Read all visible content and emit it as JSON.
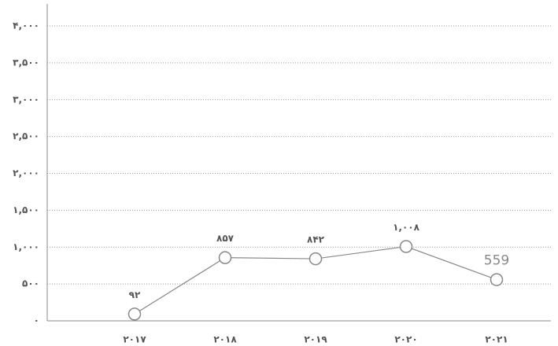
{
  "chart_data": {
    "type": "line",
    "categories": [
      "۲۰۱۷",
      "۲۰۱۸",
      "۲۰۱۹",
      "۲۰۲۰",
      "۲۰۲۱"
    ],
    "values": [
      92,
      857,
      842,
      1008,
      559
    ],
    "value_labels": [
      "۹۲",
      "۸۵۷",
      "۸۴۲",
      "۱,۰۰۸",
      "559"
    ],
    "color": "#888888",
    "ylim": [
      0,
      4000
    ],
    "yticks": [
      {
        "value": 0,
        "label": "۰"
      },
      {
        "value": 500,
        "label": "۵۰۰"
      },
      {
        "value": 1000,
        "label": "۱,۰۰۰"
      },
      {
        "value": 1500,
        "label": "۱,۵۰۰"
      },
      {
        "value": 2000,
        "label": "۲,۰۰۰"
      },
      {
        "value": 2500,
        "label": "۲,۵۰۰"
      },
      {
        "value": 3000,
        "label": "۳,۰۰۰"
      },
      {
        "value": 3500,
        "label": "۳,۵۰۰"
      },
      {
        "value": 4000,
        "label": "۴,۰۰۰"
      }
    ],
    "grid": true
  }
}
